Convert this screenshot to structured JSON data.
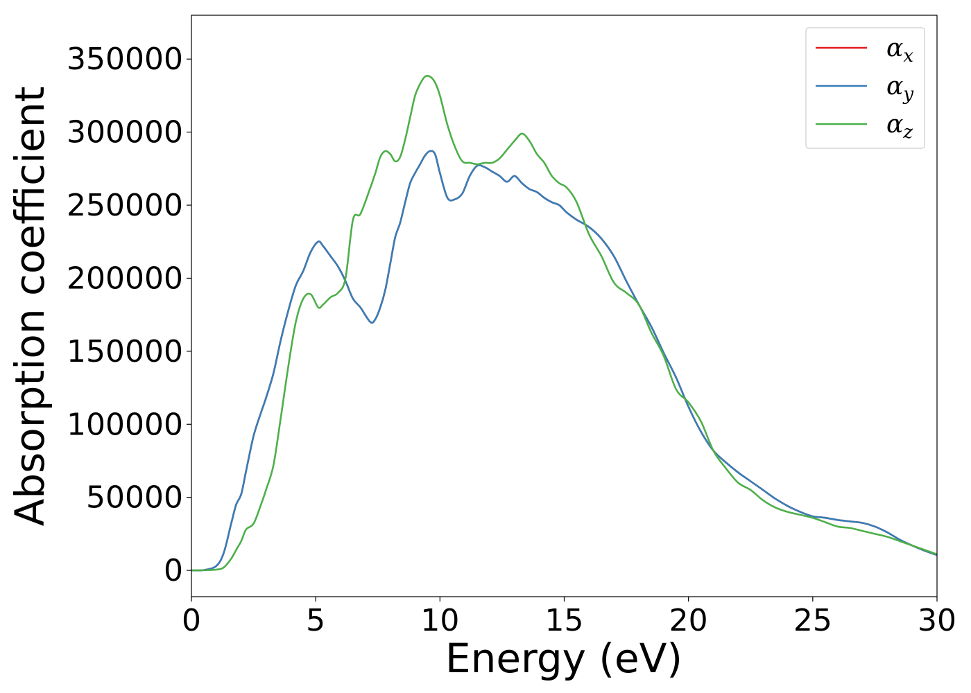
{
  "chart_data": {
    "type": "line",
    "xlabel": "Energy (eV)",
    "ylabel": "Absorption coefficient",
    "xlim": [
      0,
      30
    ],
    "ylim": [
      -18000,
      380000
    ],
    "x_ticks": [
      0,
      5,
      10,
      15,
      20,
      25,
      30
    ],
    "y_ticks": [
      0,
      50000,
      100000,
      150000,
      200000,
      250000,
      300000,
      350000
    ],
    "x_tick_labels": [
      "0",
      "5",
      "10",
      "15",
      "20",
      "25",
      "30"
    ],
    "y_tick_labels": [
      "0",
      "50000",
      "100000",
      "150000",
      "200000",
      "250000",
      "300000",
      "350000"
    ],
    "grid": false,
    "legend_position": "top-right",
    "x": [
      0,
      0.5,
      1.0,
      1.3,
      1.6,
      1.8,
      2.0,
      2.2,
      2.5,
      2.8,
      3.0,
      3.3,
      3.6,
      3.9,
      4.2,
      4.5,
      4.8,
      5.1,
      5.3,
      5.6,
      5.9,
      6.2,
      6.5,
      6.8,
      7.2,
      7.4,
      7.6,
      7.8,
      8.0,
      8.2,
      8.4,
      8.6,
      8.8,
      9.0,
      9.2,
      9.4,
      9.6,
      9.8,
      10.0,
      10.3,
      10.6,
      10.9,
      11.2,
      11.5,
      11.8,
      12.1,
      12.4,
      12.7,
      13.0,
      13.3,
      13.6,
      13.9,
      14.2,
      14.5,
      14.8,
      15.1,
      15.5,
      16.0,
      16.5,
      17.0,
      17.5,
      18.0,
      18.5,
      19.0,
      19.5,
      20.0,
      20.5,
      21.0,
      21.5,
      22.0,
      22.5,
      23.0,
      23.5,
      24.0,
      24.5,
      25.0,
      25.5,
      26.0,
      26.5,
      27.0,
      27.5,
      28.0,
      28.5,
      29.0,
      29.5,
      30.0
    ],
    "series": [
      {
        "name": "α_x",
        "color": "#e41a1c",
        "values": [
          0,
          200,
          3000,
          12000,
          32000,
          45000,
          52000,
          68000,
          92000,
          108000,
          118000,
          135000,
          158000,
          178000,
          195000,
          205000,
          218000,
          225000,
          222000,
          215000,
          208000,
          198000,
          186000,
          180000,
          170000,
          172000,
          180000,
          192000,
          210000,
          228000,
          238000,
          252000,
          265000,
          272000,
          278000,
          284000,
          287000,
          285000,
          272000,
          255000,
          254000,
          258000,
          270000,
          277000,
          276000,
          273000,
          270000,
          266000,
          270000,
          265000,
          261000,
          259000,
          255000,
          252000,
          250000,
          245000,
          240000,
          235000,
          227000,
          215000,
          198000,
          182000,
          167000,
          149000,
          132000,
          112000,
          95000,
          82000,
          74000,
          67000,
          61000,
          55000,
          49000,
          44000,
          40000,
          37000,
          36000,
          34500,
          33500,
          32500,
          30000,
          26000,
          21000,
          17000,
          13500,
          10500
        ]
      },
      {
        "name": "α_y",
        "color": "#377eb8",
        "values": [
          0,
          200,
          3000,
          12000,
          32000,
          45000,
          52000,
          68000,
          92000,
          108000,
          118000,
          135000,
          158000,
          178000,
          195000,
          205000,
          218000,
          225000,
          222000,
          215000,
          208000,
          198000,
          186000,
          180000,
          170000,
          172000,
          180000,
          192000,
          210000,
          228000,
          238000,
          252000,
          265000,
          272000,
          278000,
          284000,
          287000,
          285000,
          272000,
          255000,
          254000,
          258000,
          270000,
          277000,
          276000,
          273000,
          270000,
          266000,
          270000,
          265000,
          261000,
          259000,
          255000,
          252000,
          250000,
          245000,
          240000,
          235000,
          227000,
          215000,
          198000,
          182000,
          167000,
          149000,
          132000,
          112000,
          95000,
          82000,
          74000,
          67000,
          61000,
          55000,
          49000,
          44000,
          40000,
          37000,
          36000,
          34500,
          33500,
          32500,
          30000,
          26000,
          21000,
          17000,
          13500,
          10500
        ]
      },
      {
        "name": "α_z",
        "color": "#4daf4a",
        "values": [
          0,
          100,
          500,
          2000,
          8000,
          14000,
          20000,
          28000,
          32000,
          45000,
          55000,
          72000,
          105000,
          140000,
          170000,
          186000,
          189000,
          180000,
          182000,
          187000,
          190000,
          200000,
          240000,
          244000,
          262000,
          272000,
          283000,
          287000,
          285000,
          280000,
          283000,
          295000,
          310000,
          325000,
          333000,
          338000,
          338000,
          334000,
          325000,
          305000,
          290000,
          280000,
          279000,
          278000,
          279000,
          279000,
          282000,
          288000,
          294000,
          299000,
          294000,
          285000,
          279000,
          270000,
          265000,
          262000,
          252000,
          230000,
          215000,
          197000,
          190000,
          182000,
          163000,
          147000,
          124000,
          115000,
          102000,
          82000,
          70000,
          60000,
          55000,
          48000,
          43000,
          40000,
          38000,
          36000,
          33000,
          30000,
          29000,
          27000,
          25000,
          23000,
          20000,
          17000,
          14000,
          11000
        ]
      }
    ],
    "legend": [
      {
        "symbol": "α",
        "sub": "x",
        "color": "#e41a1c"
      },
      {
        "symbol": "α",
        "sub": "y",
        "color": "#377eb8"
      },
      {
        "symbol": "α",
        "sub": "z",
        "color": "#4daf4a"
      }
    ]
  }
}
